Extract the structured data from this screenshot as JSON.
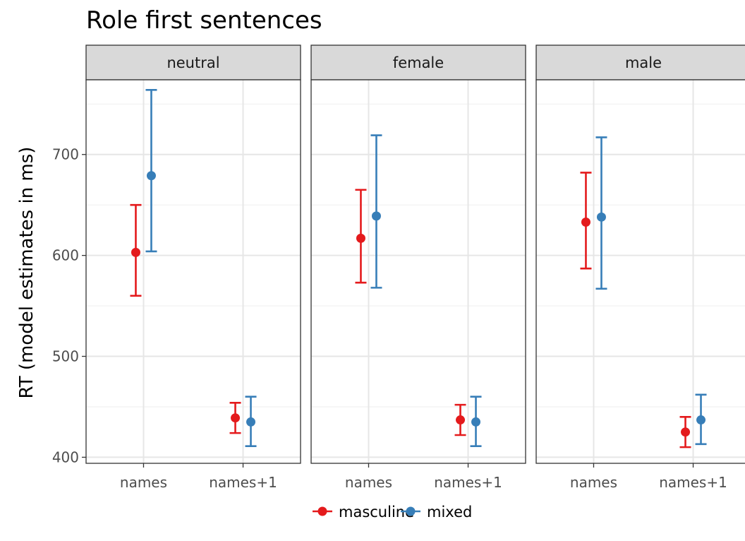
{
  "chart_data": {
    "type": "scatter",
    "title": "Role first sentences",
    "ylabel": "RT (model estimates in ms)",
    "xlabel": "",
    "ylim": [
      394,
      774
    ],
    "yticks": [
      400,
      500,
      600,
      700
    ],
    "grid": true,
    "legend_position": "bottom",
    "categories": [
      "names",
      "names+1"
    ],
    "panels": [
      "neutral",
      "female",
      "male"
    ],
    "series": [
      {
        "name": "masculine",
        "color": "#e41a1c",
        "points": [
          {
            "panel": "neutral",
            "x": "names",
            "y": 603,
            "ymin": 560,
            "ymax": 650
          },
          {
            "panel": "neutral",
            "x": "names+1",
            "y": 439,
            "ymin": 424,
            "ymax": 454
          },
          {
            "panel": "female",
            "x": "names",
            "y": 617,
            "ymin": 573,
            "ymax": 665
          },
          {
            "panel": "female",
            "x": "names+1",
            "y": 437,
            "ymin": 422,
            "ymax": 452
          },
          {
            "panel": "male",
            "x": "names",
            "y": 633,
            "ymin": 587,
            "ymax": 682
          },
          {
            "panel": "male",
            "x": "names+1",
            "y": 425,
            "ymin": 410,
            "ymax": 440
          }
        ]
      },
      {
        "name": "mixed",
        "color": "#377eb8",
        "points": [
          {
            "panel": "neutral",
            "x": "names",
            "y": 679,
            "ymin": 604,
            "ymax": 764
          },
          {
            "panel": "neutral",
            "x": "names+1",
            "y": 435,
            "ymin": 411,
            "ymax": 460
          },
          {
            "panel": "female",
            "x": "names",
            "y": 639,
            "ymin": 568,
            "ymax": 719
          },
          {
            "panel": "female",
            "x": "names+1",
            "y": 435,
            "ymin": 411,
            "ymax": 460
          },
          {
            "panel": "male",
            "x": "names",
            "y": 638,
            "ymin": 567,
            "ymax": 717
          },
          {
            "panel": "male",
            "x": "names+1",
            "y": 437,
            "ymin": 413,
            "ymax": 462
          }
        ]
      }
    ]
  }
}
